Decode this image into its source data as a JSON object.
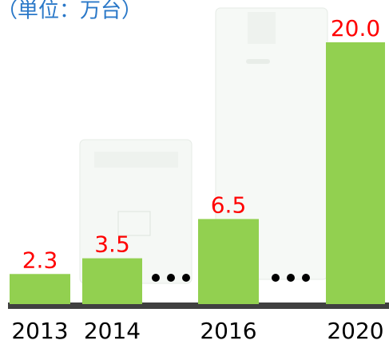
{
  "chart_data": {
    "type": "bar",
    "title": "（単位：万台）",
    "categories": [
      "2013",
      "2014",
      "2016",
      "2020"
    ],
    "values": [
      2.3,
      3.5,
      6.5,
      20.0
    ],
    "value_labels": [
      "2.3",
      "3.5",
      "6.5",
      "20.0"
    ],
    "color": "#92d050",
    "label_color": "#ff0000",
    "title_color": "#2a78c8"
  }
}
